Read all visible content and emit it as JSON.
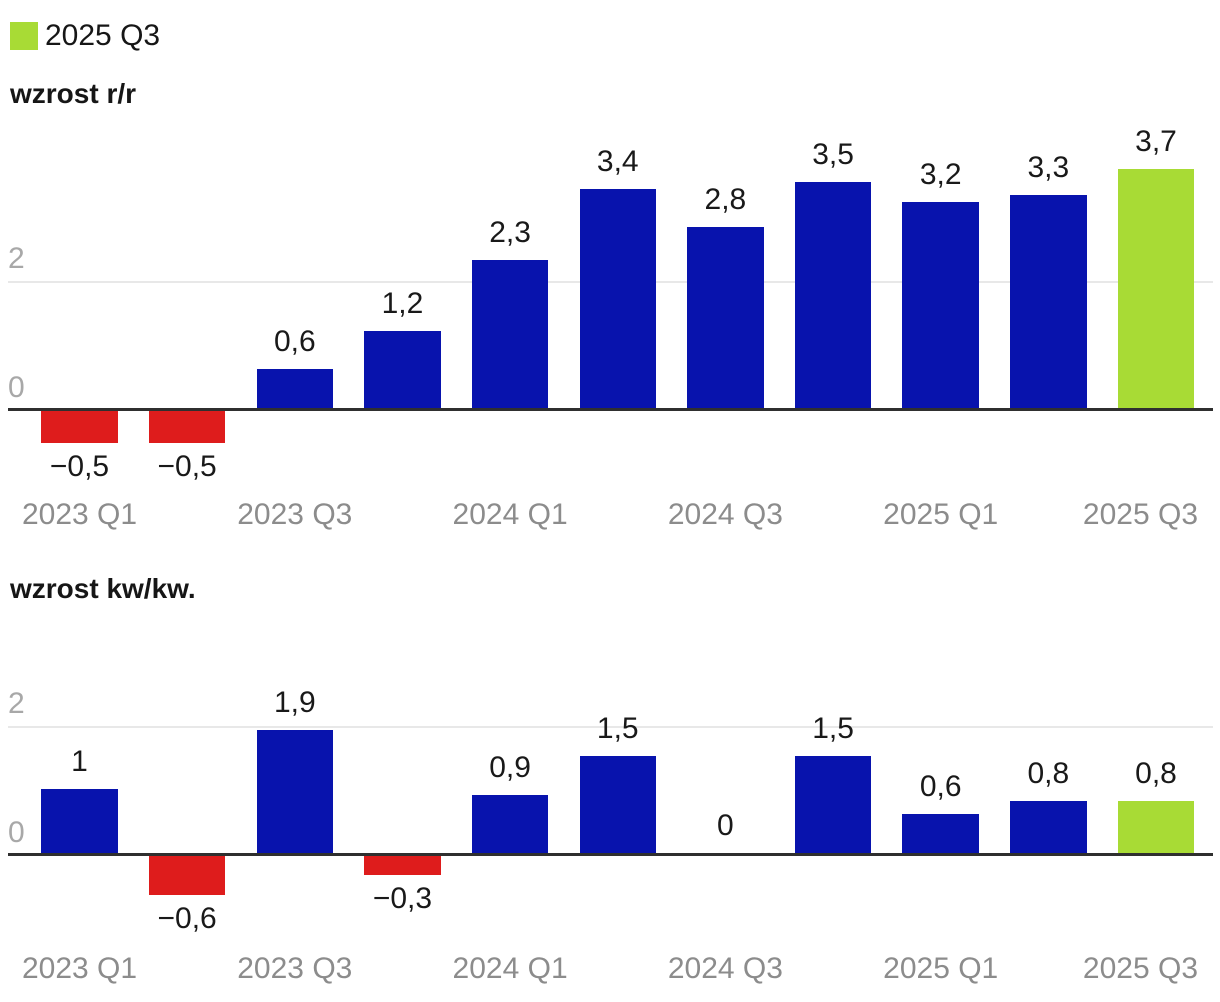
{
  "legend": {
    "label": "2025 Q3"
  },
  "colors": {
    "positive": "#0813ad",
    "negative": "#de1c1c",
    "highlight": "#a8db35",
    "grid": "#e8e8e8",
    "axis": "#2f2f2f",
    "value_label": "#191919",
    "y_tick": "#a8a8a8",
    "x_label": "#8c8c8c"
  },
  "chart_data": [
    {
      "type": "bar",
      "title": "wzrost r/r",
      "categories": [
        "2023 Q1",
        "2023 Q2",
        "2023 Q3",
        "2023 Q4",
        "2024 Q1",
        "2024 Q2",
        "2024 Q3",
        "2024 Q4",
        "2025 Q1",
        "2025 Q2",
        "2025 Q3"
      ],
      "values": [
        -0.5,
        -0.5,
        0.6,
        1.2,
        2.3,
        3.4,
        2.8,
        3.5,
        3.2,
        3.3,
        3.7
      ],
      "value_labels": [
        "−0,5",
        "−0,5",
        "0,6",
        "1,2",
        "2,3",
        "3,4",
        "2,8",
        "3,5",
        "3,2",
        "3,3",
        "3,7"
      ],
      "x_tick_labels": [
        "2023 Q1",
        "2023 Q3",
        "2024 Q1",
        "2024 Q3",
        "2025 Q1",
        "2025 Q3"
      ],
      "y_ticks": [
        0,
        2
      ],
      "ylim": [
        -0.8,
        4.0
      ],
      "grid": "single horizontal gridline at y=2, dark zero axis line",
      "legend_position": "top-left",
      "highlight_index": 10
    },
    {
      "type": "bar",
      "title": "wzrost kw/kw.",
      "categories": [
        "2023 Q1",
        "2023 Q2",
        "2023 Q3",
        "2023 Q4",
        "2024 Q1",
        "2024 Q2",
        "2024 Q3",
        "2024 Q4",
        "2025 Q1",
        "2025 Q2",
        "2025 Q3"
      ],
      "values": [
        1,
        -0.6,
        1.9,
        -0.3,
        0.9,
        1.5,
        0,
        1.5,
        0.6,
        0.8,
        0.8
      ],
      "value_labels": [
        "1",
        "−0,6",
        "1,9",
        "−0,3",
        "0,9",
        "1,5",
        "0",
        "1,5",
        "0,6",
        "0,8",
        "0,8"
      ],
      "x_tick_labels": [
        "2023 Q1",
        "2023 Q3",
        "2024 Q1",
        "2024 Q3",
        "2025 Q1",
        "2025 Q3"
      ],
      "y_ticks": [
        0,
        2
      ],
      "ylim": [
        -0.9,
        2.2
      ],
      "grid": "single horizontal gridline at y=2, dark zero axis line",
      "highlight_index": 10
    }
  ]
}
